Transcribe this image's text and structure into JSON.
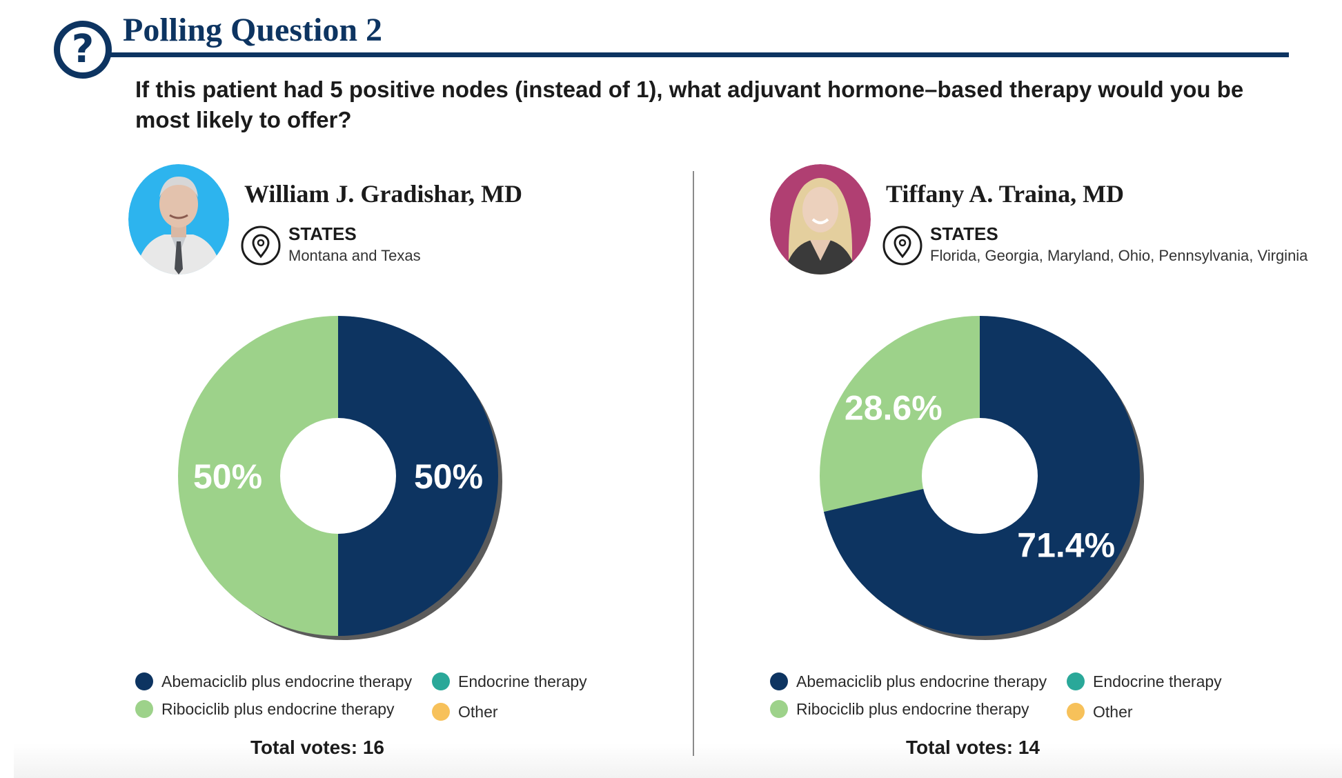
{
  "header": {
    "title": "Polling Question 2",
    "icon": "question-circle-icon",
    "question": "If this patient had 5 positive nodes (instead of 1), what adjuvant hormone–based therapy would you be most likely to offer?"
  },
  "colors": {
    "brand_navy": "#0d3461",
    "abemaciclib": "#0d3461",
    "ribociclib": "#9dd28a",
    "endocrine": "#2aa899",
    "other": "#f7c15a",
    "avatar_left_bg": "#2db4ee",
    "avatar_right_bg": "#b03f72"
  },
  "panels": [
    {
      "doctor": "William J. Gradishar, MD",
      "states_label": "STATES",
      "states_value": "Montana and Texas",
      "total_votes": "Total votes: 16"
    },
    {
      "doctor": "Tiffany A. Traina, MD",
      "states_label": "STATES",
      "states_value": "Florida, Georgia, Maryland, Ohio, Pennsylvania, Virginia",
      "total_votes": "Total votes: 14"
    }
  ],
  "legend": [
    {
      "label": "Abemaciclib plus endocrine therapy",
      "color": "#0d3461"
    },
    {
      "label": "Endocrine therapy",
      "color": "#2aa899"
    },
    {
      "label": "Ribociclib plus endocrine therapy",
      "color": "#9dd28a"
    },
    {
      "label": "Other",
      "color": "#f7c15a"
    }
  ],
  "chart_data": [
    {
      "type": "pie",
      "donut": true,
      "categories": [
        "Abemaciclib plus endocrine therapy",
        "Ribociclib plus endocrine therapy",
        "Endocrine therapy",
        "Other"
      ],
      "values": [
        50,
        50,
        0,
        0
      ],
      "labels": [
        "50%",
        "50%",
        "",
        ""
      ],
      "title": "",
      "total": 16
    },
    {
      "type": "pie",
      "donut": true,
      "categories": [
        "Abemaciclib plus endocrine therapy",
        "Ribociclib plus endocrine therapy",
        "Endocrine therapy",
        "Other"
      ],
      "values": [
        71.4,
        28.6,
        0,
        0
      ],
      "labels": [
        "71.4%",
        "28.6%",
        "",
        ""
      ],
      "title": "",
      "total": 14
    }
  ]
}
